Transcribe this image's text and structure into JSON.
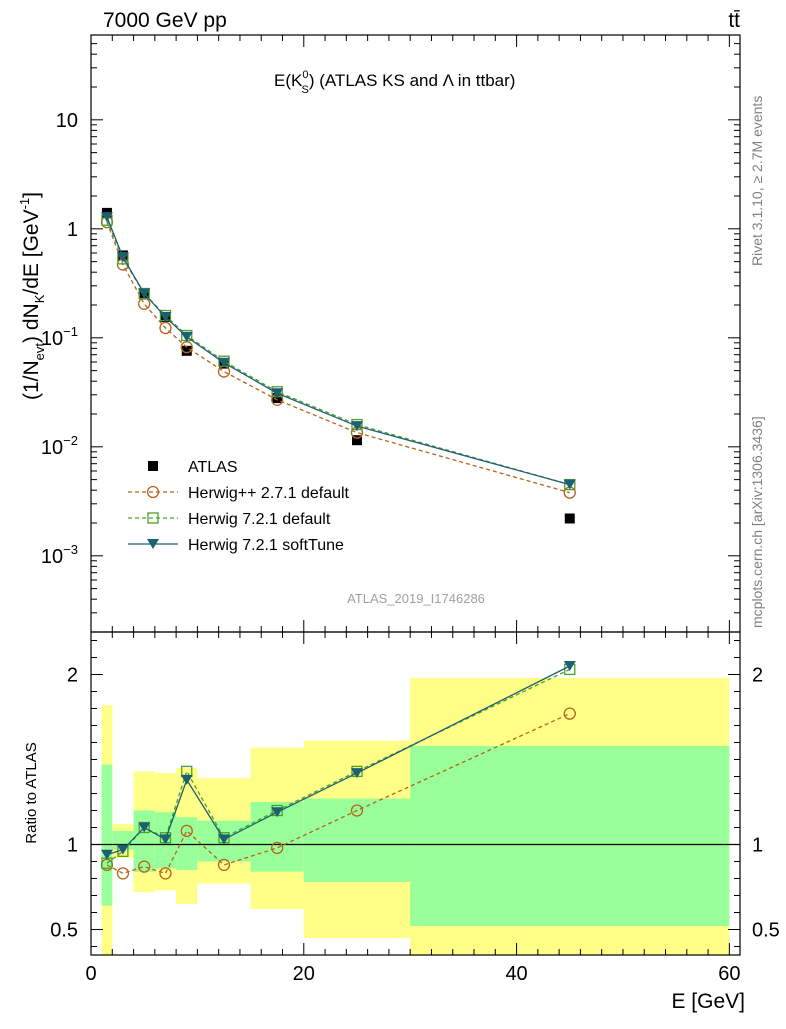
{
  "header": {
    "left": "7000 GeV pp",
    "right": "tt̄"
  },
  "side_text": {
    "top": "Rivet 3.1.10, ≥ 2.7M events",
    "bottom": "mcplots.cern.ch [arXiv:1306.3436]"
  },
  "chart_data": [
    {
      "type": "scatter",
      "title_main": "E(K",
      "title_sup": "0",
      "title_sub": "S",
      "title_rest": ") (ATLAS KS and Λ in ttbar)",
      "ylabel": "(1/N_evt) dN_K/dE [GeV^-1]",
      "ylabel_parts": {
        "a": "(1/N",
        "b": "evt",
        "c": ") dN",
        "d": "K",
        "e": "/dE [GeV",
        "f": "-1",
        "g": "]"
      },
      "yscale": "log",
      "ylim": [
        0.0002,
        60
      ],
      "xlim": [
        0,
        61
      ],
      "y_ticks": [
        {
          "value": 10,
          "label": "10"
        },
        {
          "value": 1,
          "label": "1"
        },
        {
          "value": 0.1,
          "label": "10",
          "exp": "−1"
        },
        {
          "value": 0.01,
          "label": "10",
          "exp": "−2"
        },
        {
          "value": 0.001,
          "label": "10",
          "exp": "−3"
        }
      ],
      "watermark": "ATLAS_2019_I1746286",
      "x": [
        1.5,
        3,
        5,
        7,
        9,
        12.5,
        17.5,
        25,
        45
      ],
      "series": [
        {
          "name": "ATLAS",
          "style": "data",
          "color": "#000000",
          "values": [
            1.4,
            0.57,
            0.25,
            0.155,
            0.076,
            0.058,
            0.028,
            0.0115,
            0.0022
          ]
        },
        {
          "name": "Herwig++ 2.7.1 default",
          "style": "circle-dashed",
          "color": "#b5651d",
          "values": [
            1.15,
            0.47,
            0.205,
            0.123,
            0.082,
            0.049,
            0.027,
            0.0135,
            0.0038
          ]
        },
        {
          "name": "Herwig 7.2.1 default",
          "style": "square-dashed",
          "color": "#4aa02c",
          "values": [
            1.2,
            0.53,
            0.255,
            0.16,
            0.105,
            0.061,
            0.032,
            0.016,
            0.0045
          ]
        },
        {
          "name": "Herwig 7.2.1 softTune",
          "style": "triangle-solid",
          "color": "#1f5f73",
          "values": [
            1.28,
            0.55,
            0.255,
            0.155,
            0.102,
            0.059,
            0.031,
            0.0155,
            0.0045
          ]
        }
      ]
    },
    {
      "type": "line",
      "ylabel": "Ratio to ATLAS",
      "xlabel": "E [GeV]",
      "ylim": [
        0.35,
        2.25
      ],
      "xlim": [
        0,
        61
      ],
      "y_ticks": [
        {
          "value": 0.5,
          "label": "0.5"
        },
        {
          "value": 1,
          "label": "1"
        },
        {
          "value": 2,
          "label": "2"
        }
      ],
      "x_ticks": [
        {
          "value": 0,
          "label": "0"
        },
        {
          "value": 20,
          "label": "20"
        },
        {
          "value": 40,
          "label": "40"
        },
        {
          "value": 60,
          "label": "60"
        }
      ],
      "bands": [
        {
          "x0": 1,
          "x1": 2,
          "yellow": [
            0.35,
            1.82
          ],
          "green": [
            0.64,
            1.47
          ]
        },
        {
          "x0": 2,
          "x1": 4,
          "yellow": [
            0.92,
            1.12
          ],
          "green": [
            0.97,
            1.08
          ]
        },
        {
          "x0": 4,
          "x1": 6,
          "yellow": [
            0.72,
            1.43
          ],
          "green": [
            0.84,
            1.2
          ]
        },
        {
          "x0": 6,
          "x1": 8,
          "yellow": [
            0.73,
            1.42
          ],
          "green": [
            0.86,
            1.19
          ]
        },
        {
          "x0": 8,
          "x1": 10,
          "yellow": [
            0.65,
            1.45
          ],
          "green": [
            0.85,
            1.16
          ]
        },
        {
          "x0": 10,
          "x1": 15,
          "yellow": [
            0.77,
            1.39
          ],
          "green": [
            0.9,
            1.14
          ]
        },
        {
          "x0": 15,
          "x1": 20,
          "yellow": [
            0.62,
            1.57
          ],
          "green": [
            0.84,
            1.25
          ]
        },
        {
          "x0": 20,
          "x1": 30,
          "yellow": [
            0.45,
            1.61
          ],
          "green": [
            0.78,
            1.27
          ]
        },
        {
          "x0": 30,
          "x1": 60,
          "yellow": [
            0.35,
            1.98
          ],
          "green": [
            0.52,
            1.58
          ]
        }
      ],
      "series": [
        {
          "name": "Herwig++ 2.7.1 default",
          "style": "circle-dashed",
          "color": "#b5651d",
          "values": [
            0.88,
            0.83,
            0.87,
            0.83,
            1.08,
            0.88,
            0.98,
            1.2,
            1.77
          ]
        },
        {
          "name": "Herwig 7.2.1 default",
          "style": "square-dashed",
          "color": "#4aa02c",
          "values": [
            0.89,
            0.96,
            1.1,
            1.04,
            1.43,
            1.04,
            1.2,
            1.43,
            2.03
          ]
        },
        {
          "name": "Herwig 7.2.1 softTune",
          "style": "triangle-solid",
          "color": "#1f5f73",
          "values": [
            0.94,
            0.97,
            1.1,
            1.03,
            1.38,
            1.03,
            1.19,
            1.42,
            2.05
          ]
        }
      ]
    }
  ]
}
